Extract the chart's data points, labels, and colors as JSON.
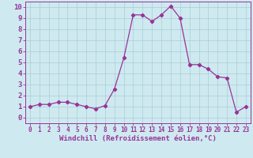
{
  "x": [
    0,
    1,
    2,
    3,
    4,
    5,
    6,
    7,
    8,
    9,
    10,
    11,
    12,
    13,
    14,
    15,
    16,
    17,
    18,
    19,
    20,
    21,
    22,
    23
  ],
  "y": [
    1.0,
    1.2,
    1.2,
    1.4,
    1.4,
    1.2,
    1.0,
    0.8,
    1.1,
    2.6,
    5.4,
    9.3,
    9.3,
    8.7,
    9.3,
    10.1,
    9.0,
    4.8,
    4.8,
    4.4,
    3.7,
    3.6,
    0.5,
    1.0
  ],
  "line_color": "#993399",
  "marker": "D",
  "marker_size": 2.2,
  "xlabel": "Windchill (Refroidissement éolien,°C)",
  "xlabel_fontsize": 6.5,
  "bg_color": "#ceeaf0",
  "grid_color": "#aaccd4",
  "tick_color": "#993399",
  "label_color": "#993399",
  "ylim": [
    -0.5,
    10.5
  ],
  "xlim": [
    -0.5,
    23.5
  ],
  "yticks": [
    0,
    1,
    2,
    3,
    4,
    5,
    6,
    7,
    8,
    9,
    10
  ],
  "xticks": [
    0,
    1,
    2,
    3,
    4,
    5,
    6,
    7,
    8,
    9,
    10,
    11,
    12,
    13,
    14,
    15,
    16,
    17,
    18,
    19,
    20,
    21,
    22,
    23
  ],
  "ytick_fontsize": 6.5,
  "xtick_fontsize": 5.5
}
